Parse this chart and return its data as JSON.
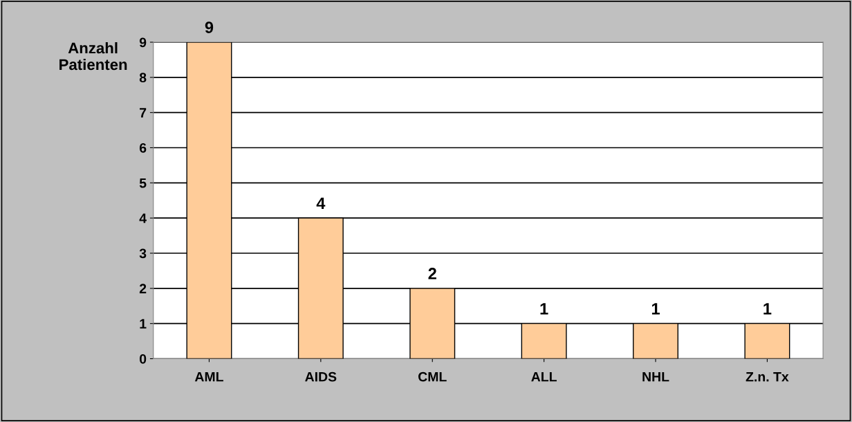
{
  "chart_data": {
    "type": "bar",
    "ylabel": "Anzahl\nPatienten",
    "categories": [
      "AML",
      "AIDS",
      "CML",
      "ALL",
      "NHL",
      "Z.n. Tx"
    ],
    "values": [
      9,
      4,
      2,
      1,
      1,
      1
    ],
    "color": "#ffcc99",
    "ylim": [
      0,
      9
    ],
    "yticks": [
      0,
      1,
      2,
      3,
      4,
      5,
      6,
      7,
      8,
      9
    ],
    "grid": "y",
    "data_labels": true
  }
}
